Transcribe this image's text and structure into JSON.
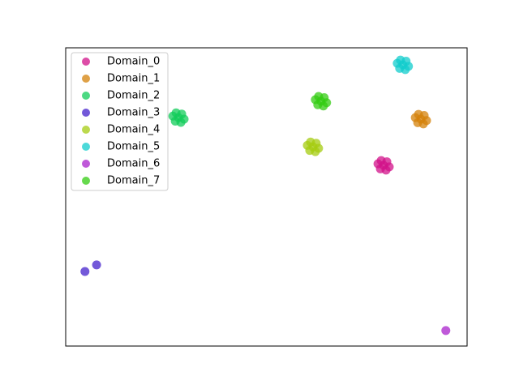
{
  "chart_data": {
    "type": "scatter",
    "xlim": [
      0,
      100
    ],
    "ylim": [
      0,
      100
    ],
    "legend": "upper left",
    "series": [
      {
        "name": "Domain_0",
        "color": "#d1128a",
        "x": [
          79.2,
          77.8,
          80.6,
          78.6,
          79.8,
          80.0,
          78.4
        ],
        "values": [
          60.6,
          61.1,
          60.1,
          62.2,
          59.0,
          61.8,
          59.4
        ]
      },
      {
        "name": "Domain_1",
        "color": "#d4820a",
        "x": [
          88.5,
          87.1,
          89.9,
          87.9,
          89.1,
          89.3,
          87.7
        ],
        "values": [
          76.1,
          76.6,
          75.6,
          77.7,
          74.5,
          77.3,
          74.9
        ]
      },
      {
        "name": "Domain_2",
        "color": "#12cc5a",
        "x": [
          28.1,
          26.7,
          29.5,
          27.5,
          28.7,
          28.9,
          27.3
        ],
        "values": [
          76.6,
          77.1,
          76.1,
          78.2,
          75.0,
          77.8,
          75.4
        ]
      },
      {
        "name": "Domain_3",
        "color": "#4422cc",
        "x": [
          4.8,
          7.7
        ],
        "values": [
          25.0,
          27.2
        ]
      },
      {
        "name": "Domain_4",
        "color": "#a6cc12",
        "x": [
          61.6,
          60.2,
          63.0,
          61.0,
          62.2,
          62.4,
          60.8
        ],
        "values": [
          66.8,
          67.3,
          66.3,
          68.4,
          65.2,
          68.0,
          65.6
        ]
      },
      {
        "name": "Domain_5",
        "color": "#12cccc",
        "x": [
          84.0,
          82.6,
          85.4,
          83.4,
          84.6,
          84.8,
          83.2
        ],
        "values": [
          94.3,
          94.8,
          93.8,
          95.9,
          92.7,
          95.5,
          93.1
        ]
      },
      {
        "name": "Domain_6",
        "color": "#aa22cc",
        "x": [
          94.7
        ],
        "values": [
          5.2
        ]
      },
      {
        "name": "Domain_7",
        "color": "#33cc12",
        "x": [
          63.6,
          62.2,
          65.0,
          63.0,
          64.2,
          64.4,
          62.8
        ],
        "values": [
          82.1,
          82.6,
          81.6,
          83.7,
          80.5,
          83.3,
          80.9
        ]
      }
    ]
  }
}
